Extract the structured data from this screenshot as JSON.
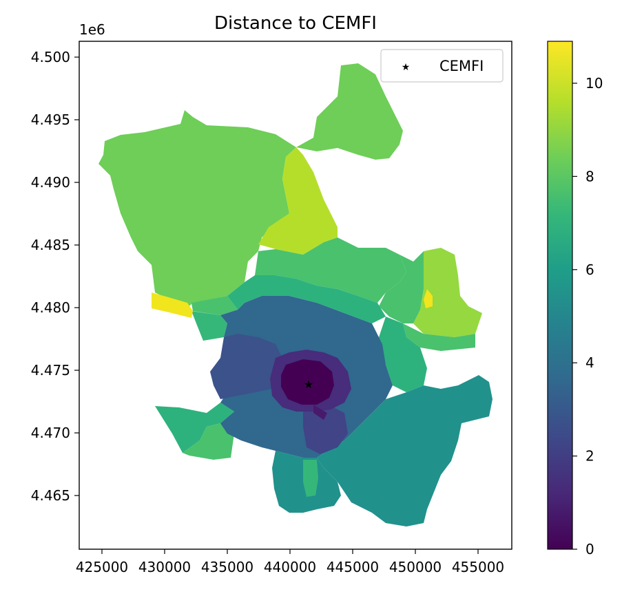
{
  "title": "Distance to CEMFI",
  "offset_label": "1e6",
  "x_ticks": [
    "425000",
    "430000",
    "435000",
    "440000",
    "445000",
    "450000",
    "455000"
  ],
  "y_ticks": [
    "4.465",
    "4.470",
    "4.475",
    "4.480",
    "4.485",
    "4.490",
    "4.495",
    "4.500"
  ],
  "colorbar_ticks": [
    "0",
    "2",
    "4",
    "6",
    "8",
    "10"
  ],
  "legend_label": "CEMFI",
  "marker_color": "#ff0000",
  "colormap": "viridis",
  "chart_data": {
    "type": "choropleth",
    "title": "Distance to CEMFI",
    "x_ticks": [
      425000,
      430000,
      435000,
      440000,
      445000,
      450000,
      455000
    ],
    "y_ticks": [
      4.465,
      4.47,
      4.475,
      4.48,
      4.485,
      4.49,
      4.495,
      4.5
    ],
    "y_offset_label": "1e6",
    "colorbar_range": [
      0,
      10.9
    ],
    "colorbar_ticks": [
      0,
      2,
      4,
      6,
      8,
      10
    ],
    "legend_placement": "upper right",
    "marker": {
      "label": "CEMFI",
      "symbol": "star",
      "color": "#ff0000",
      "x": 441500,
      "y": 4.4739
    }
  }
}
